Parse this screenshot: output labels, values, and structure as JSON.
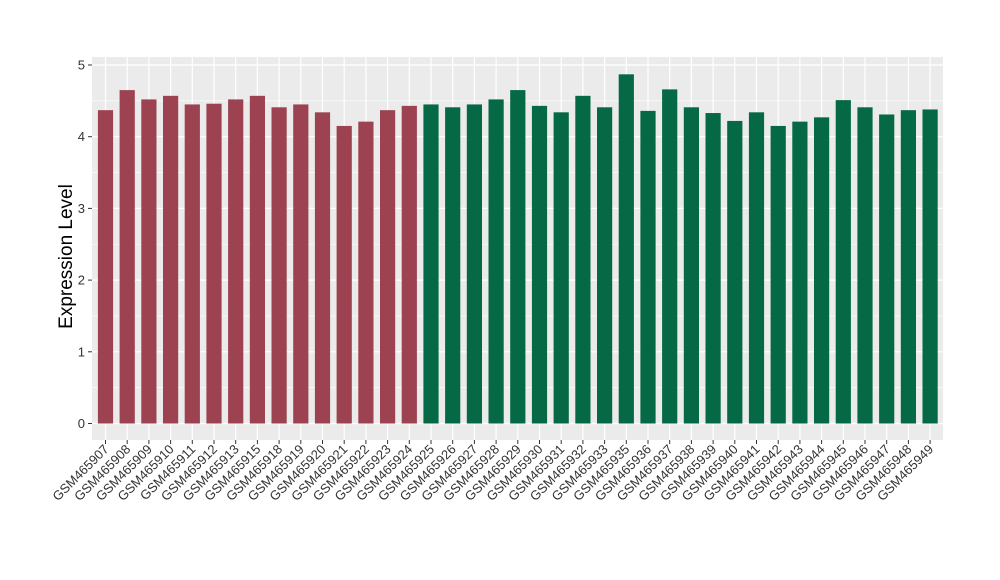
{
  "chart_data": {
    "type": "bar",
    "ylabel": "Expression Level",
    "xlabel": "",
    "ylim": [
      0,
      5
    ],
    "yticks": [
      0,
      1,
      2,
      3,
      4,
      5
    ],
    "grid": true,
    "colors": {
      "group_a": "#9c4250",
      "group_b": "#056945",
      "panel": "#ebebeb",
      "grid": "#ffffff"
    },
    "categories": [
      "GSM465907",
      "GSM465908",
      "GSM465909",
      "GSM465910",
      "GSM465911",
      "GSM465912",
      "GSM465913",
      "GSM465915",
      "GSM465918",
      "GSM465919",
      "GSM465920",
      "GSM465921",
      "GSM465922",
      "GSM465923",
      "GSM465924",
      "GSM465925",
      "GSM465926",
      "GSM465927",
      "GSM465928",
      "GSM465929",
      "GSM465930",
      "GSM465931",
      "GSM465932",
      "GSM465933",
      "GSM465935",
      "GSM465936",
      "GSM465937",
      "GSM465938",
      "GSM465939",
      "GSM465940",
      "GSM465941",
      "GSM465942",
      "GSM465943",
      "GSM465944",
      "GSM465945",
      "GSM465946",
      "GSM465947",
      "GSM465948",
      "GSM465949"
    ],
    "values": [
      4.37,
      4.65,
      4.52,
      4.57,
      4.45,
      4.46,
      4.52,
      4.57,
      4.41,
      4.45,
      4.34,
      4.15,
      4.21,
      4.37,
      4.43,
      4.45,
      4.41,
      4.45,
      4.52,
      4.65,
      4.43,
      4.34,
      4.57,
      4.41,
      4.87,
      4.36,
      4.66,
      4.41,
      4.33,
      4.22,
      4.34,
      4.15,
      4.21,
      4.27,
      4.51,
      4.41,
      4.31,
      4.37,
      4.38
    ],
    "groups": [
      "a",
      "a",
      "a",
      "a",
      "a",
      "a",
      "a",
      "a",
      "a",
      "a",
      "a",
      "a",
      "a",
      "a",
      "a",
      "b",
      "b",
      "b",
      "b",
      "b",
      "b",
      "b",
      "b",
      "b",
      "b",
      "b",
      "b",
      "b",
      "b",
      "b",
      "b",
      "b",
      "b",
      "b",
      "b",
      "b",
      "b",
      "b",
      "b"
    ]
  }
}
